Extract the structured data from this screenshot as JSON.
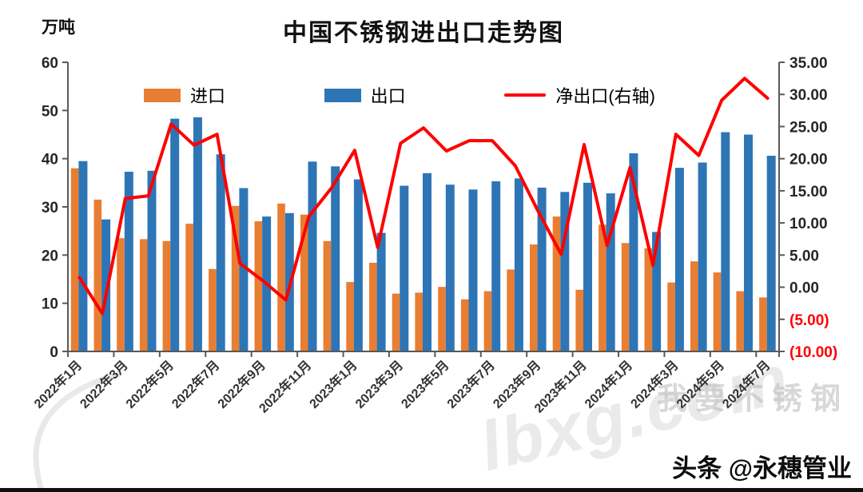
{
  "header": {
    "title": "中国不锈钢进出口走势图",
    "y_axis_unit": "万吨"
  },
  "legend": [
    {
      "label": "进口",
      "color": "#E87E33",
      "type": "bar"
    },
    {
      "label": "出口",
      "color": "#2E75B6",
      "type": "bar"
    },
    {
      "label": "净出口(右轴)",
      "color": "#FE0000",
      "type": "line"
    }
  ],
  "chart_data": {
    "type": "bar+line combo",
    "title": "中国不锈钢进出口走势图",
    "y_unit_left": "万吨",
    "legend_position": "top",
    "grid": false,
    "categories": [
      "2022年1月",
      "2022年2月",
      "2022年3月",
      "2022年4月",
      "2022年5月",
      "2022年6月",
      "2022年7月",
      "2022年8月",
      "2022年9月",
      "2022年10月",
      "2022年11月",
      "2022年12月",
      "2023年1月",
      "2023年2月",
      "2023年3月",
      "2023年4月",
      "2023年5月",
      "2023年6月",
      "2023年7月",
      "2023年8月",
      "2023年9月",
      "2023年10月",
      "2023年11月",
      "2023年12月",
      "2024年1月",
      "2024年2月",
      "2024年3月",
      "2024年4月",
      "2024年5月",
      "2024年6月",
      "2024年7月"
    ],
    "series": [
      {
        "name": "进口",
        "type": "bar",
        "axis": "left",
        "color": "#E87E33",
        "values": [
          38.0,
          31.5,
          23.5,
          23.3,
          22.9,
          26.5,
          17.1,
          30.2,
          27.0,
          30.7,
          28.4,
          22.9,
          14.4,
          18.4,
          12.0,
          12.2,
          13.4,
          10.8,
          12.5,
          17.0,
          22.2,
          28.0,
          12.8,
          26.3,
          22.5,
          21.4,
          14.3,
          18.7,
          16.4,
          12.5,
          11.2
        ]
      },
      {
        "name": "出口",
        "type": "bar",
        "axis": "left",
        "color": "#2E75B6",
        "values": [
          39.5,
          27.4,
          37.3,
          37.5,
          48.3,
          48.6,
          40.9,
          33.9,
          28.0,
          28.7,
          39.4,
          38.4,
          35.7,
          24.6,
          34.4,
          37.0,
          34.6,
          33.6,
          35.3,
          35.9,
          34.0,
          33.1,
          35.0,
          32.8,
          41.1,
          24.8,
          38.1,
          39.2,
          45.5,
          45.0,
          40.6
        ]
      },
      {
        "name": "净出口(右轴)",
        "type": "line",
        "axis": "right",
        "color": "#FE0000",
        "values": [
          1.5,
          -4.1,
          13.8,
          14.2,
          25.4,
          22.1,
          23.8,
          3.7,
          1.0,
          -2.0,
          11.0,
          15.5,
          21.3,
          6.2,
          22.4,
          24.8,
          21.2,
          22.8,
          22.8,
          18.9,
          11.8,
          5.1,
          22.2,
          6.5,
          18.6,
          3.4,
          23.8,
          20.5,
          29.1,
          32.5,
          29.4
        ]
      }
    ],
    "left_axis": {
      "min": 0,
      "max": 60,
      "step": 10,
      "tick_labels": [
        "0",
        "10",
        "20",
        "30",
        "40",
        "50",
        "60"
      ]
    },
    "right_axis": {
      "min": -10,
      "max": 35,
      "step": 5,
      "tick_labels": [
        "35.00",
        "30.00",
        "25.00",
        "20.00",
        "15.00",
        "10.00",
        "5.00",
        "0.00",
        "(5.00)",
        "(10.00)"
      ],
      "negative_label_color": "#FE0000"
    },
    "x_tick_labels": [
      "2022年1月",
      "2022年3月",
      "2022年5月",
      "2022年7月",
      "2022年9月",
      "2022年11月",
      "2023年1月",
      "2023年3月",
      "2023年5月",
      "2023年7月",
      "2023年9月",
      "2023年11月",
      "2024年1月",
      "2024年3月",
      "2024年5月",
      "2024年7月"
    ],
    "x_label_rotation_deg": -45
  },
  "watermark": {
    "text1": "我要不锈钢",
    "text2": "lbxg.com",
    "byline": "头条 @永穗管业"
  }
}
